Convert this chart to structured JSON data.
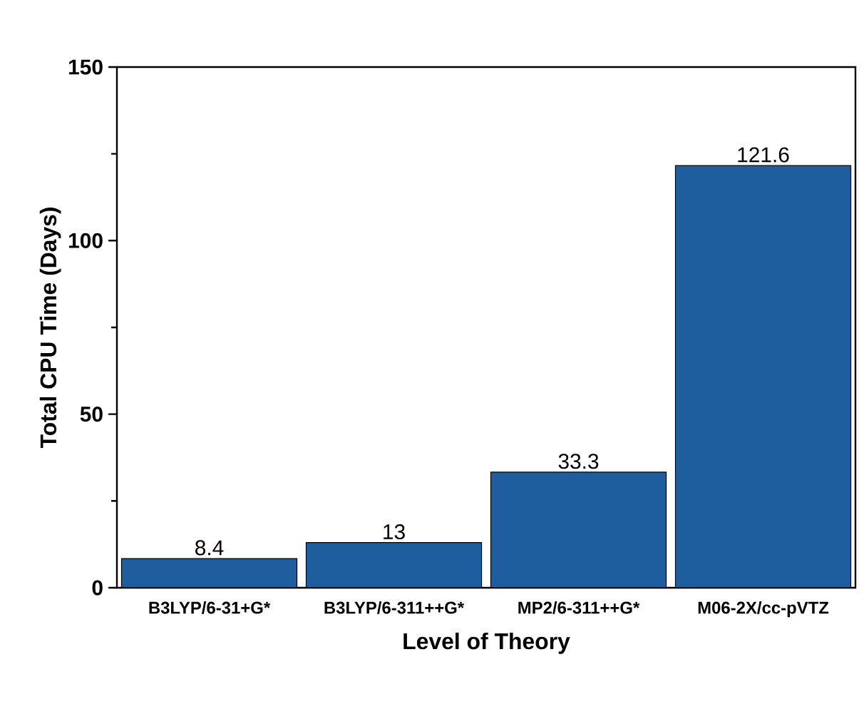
{
  "chart_data": {
    "type": "bar",
    "xlabel": "Level of Theory",
    "ylabel": "Total CPU Time (Days)",
    "categories": [
      "B3LYP/6-31+G*",
      "B3LYP/6-311++G*",
      "MP2/6-311++G*",
      "M06-2X/cc-pVTZ"
    ],
    "values": [
      8.4,
      13,
      33.3,
      121.6
    ],
    "color": "#1f5e9e",
    "ylim": [
      0,
      150
    ],
    "yticks": [
      0,
      50,
      100,
      150
    ],
    "data_labels": true,
    "grid": false
  }
}
